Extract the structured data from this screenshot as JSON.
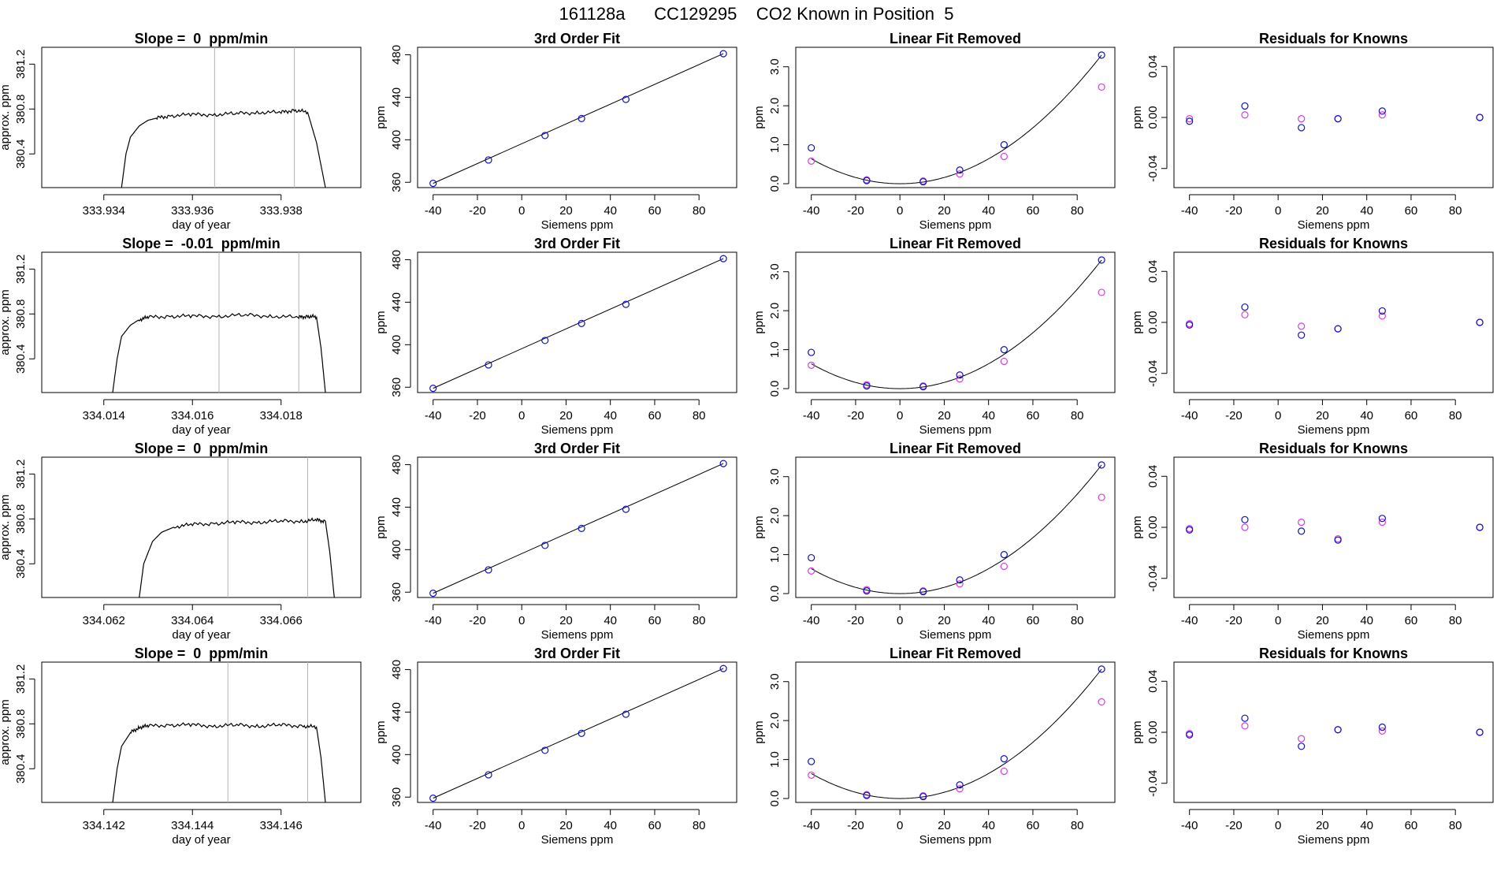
{
  "title": "161128a      CC129295    CO2 Known in Position  5",
  "colors": {
    "axis": "#000000",
    "curve": "#000000",
    "vline": "#b3b3b3",
    "point_blue": "#1010c8",
    "point_magenta": "#d040e0",
    "point_lightblue": "#3fa0e8"
  },
  "chart_data": [
    {
      "type": "line",
      "row": 1,
      "col": 1,
      "title": "Slope =  0  ppm/min",
      "xlabel": "day of year",
      "ylabel": "approx. ppm",
      "xlim": [
        333.9326,
        333.9398
      ],
      "ylim": [
        380.1,
        381.35
      ],
      "xticks": [
        333.934,
        333.936,
        333.938
      ],
      "xtick_labels": [
        "333.934",
        "333.936",
        "333.938"
      ],
      "yticks": [
        380.4,
        380.8,
        381.2
      ],
      "ytick_labels": [
        "380.4",
        "380.8",
        "381.2"
      ],
      "vlines": [
        333.9365,
        333.9383
      ],
      "x": [
        333.9344,
        333.9345,
        333.9346,
        333.9348,
        333.935,
        333.9352,
        333.9355,
        333.936,
        333.9365,
        333.937,
        333.9375,
        333.938,
        333.9383,
        333.9386,
        333.9388,
        333.939
      ],
      "y": [
        380.1,
        380.4,
        380.55,
        380.65,
        380.7,
        380.72,
        380.74,
        380.75,
        380.75,
        380.76,
        380.77,
        380.77,
        380.79,
        380.77,
        380.5,
        380.1
      ]
    },
    {
      "type": "scatter",
      "row": 1,
      "col": 2,
      "title": "3rd Order Fit",
      "xlabel": "Siemens ppm",
      "ylabel": "ppm",
      "xlim": [
        -47,
        97
      ],
      "ylim": [
        355,
        487
      ],
      "xticks": [
        -40,
        -20,
        0,
        20,
        40,
        60,
        80
      ],
      "xtick_labels": [
        "-40",
        "-20",
        "0",
        "20",
        "40",
        "60",
        "80"
      ],
      "yticks": [
        360,
        400,
        440,
        480
      ],
      "ytick_labels": [
        "360",
        "400",
        "440",
        "480"
      ],
      "fit": "linear",
      "series": [
        {
          "x": [
            -40,
            -15,
            10.5,
            27,
            47,
            91
          ],
          "y": [
            359,
            381,
            404,
            420,
            438,
            481
          ]
        }
      ]
    },
    {
      "type": "scatter",
      "row": 1,
      "col": 3,
      "title": "Linear Fit Removed",
      "xlabel": "Siemens ppm",
      "ylabel": "ppm",
      "xlim": [
        -47,
        97
      ],
      "ylim": [
        -0.1,
        3.5
      ],
      "xticks": [
        -40,
        -20,
        0,
        20,
        40,
        60,
        80
      ],
      "xtick_labels": [
        "-40",
        "-20",
        "0",
        "20",
        "40",
        "60",
        "80"
      ],
      "yticks": [
        0.0,
        1.0,
        2.0,
        3.0
      ],
      "ytick_labels": [
        "0.0",
        "1.0",
        "2.0",
        "3.0"
      ],
      "fit": "quadratic",
      "series": [
        {
          "x": [
            -40,
            -15,
            10.5,
            27,
            47,
            91
          ],
          "y": [
            0.92,
            0.08,
            0.05,
            0.35,
            1.0,
            3.3
          ]
        },
        {
          "x": [
            -40,
            -15,
            10.5,
            27,
            47,
            91
          ],
          "y": [
            0.58,
            0.1,
            0.07,
            0.25,
            0.7,
            2.48
          ]
        }
      ]
    },
    {
      "type": "scatter",
      "row": 1,
      "col": 4,
      "title": "Residuals for Knowns",
      "xlabel": "Siemens ppm",
      "ylabel": "ppm",
      "xlim": [
        -47,
        97
      ],
      "ylim": [
        -0.055,
        0.055
      ],
      "xticks": [
        -40,
        -20,
        0,
        20,
        40,
        60,
        80
      ],
      "xtick_labels": [
        "-40",
        "-20",
        "0",
        "20",
        "40",
        "60",
        "80"
      ],
      "yticks": [
        -0.04,
        0.0,
        0.04
      ],
      "ytick_labels": [
        "-0.04",
        "0.00",
        "0.04"
      ],
      "series": [
        {
          "x": [
            -40,
            -15,
            10.5,
            27,
            47,
            91
          ],
          "y": [
            -0.003,
            0.009,
            -0.008,
            -0.001,
            0.005,
            0.0
          ]
        },
        {
          "x": [
            -40,
            -15,
            10.5,
            27,
            47,
            91
          ],
          "y": [
            -0.001,
            0.002,
            -0.001,
            -0.001,
            0.002,
            0.0
          ]
        }
      ]
    },
    {
      "type": "line",
      "row": 2,
      "col": 1,
      "title": "Slope =  -0.01  ppm/min",
      "xlabel": "day of year",
      "ylabel": "approx. ppm",
      "xlim": [
        334.0126,
        334.0198
      ],
      "ylim": [
        380.1,
        381.35
      ],
      "xticks": [
        334.014,
        334.016,
        334.018
      ],
      "xtick_labels": [
        "334.014",
        "334.016",
        "334.018"
      ],
      "yticks": [
        380.4,
        380.8,
        381.2
      ],
      "ytick_labels": [
        "380.4",
        "380.8",
        "381.2"
      ],
      "vlines": [
        334.0166,
        334.0184
      ],
      "x": [
        334.0142,
        334.0143,
        334.0144,
        334.0146,
        334.0148,
        334.015,
        334.0155,
        334.016,
        334.0166,
        334.0172,
        334.0178,
        334.0184,
        334.0186,
        334.0188,
        334.0189,
        334.019
      ],
      "y": [
        380.1,
        380.4,
        380.6,
        380.7,
        380.75,
        380.77,
        380.78,
        380.78,
        380.78,
        380.79,
        380.78,
        380.77,
        380.78,
        380.77,
        380.5,
        380.1
      ]
    },
    {
      "type": "scatter",
      "row": 2,
      "col": 2,
      "title": "3rd Order Fit",
      "xlabel": "Siemens ppm",
      "ylabel": "ppm",
      "xlim": [
        -47,
        97
      ],
      "ylim": [
        355,
        487
      ],
      "xticks": [
        -40,
        -20,
        0,
        20,
        40,
        60,
        80
      ],
      "xtick_labels": [
        "-40",
        "-20",
        "0",
        "20",
        "40",
        "60",
        "80"
      ],
      "yticks": [
        360,
        400,
        440,
        480
      ],
      "ytick_labels": [
        "360",
        "400",
        "440",
        "480"
      ],
      "fit": "linear",
      "series": [
        {
          "x": [
            -40,
            -15,
            10.5,
            27,
            47,
            91
          ],
          "y": [
            359,
            381,
            404,
            420,
            438,
            481
          ]
        }
      ]
    },
    {
      "type": "scatter",
      "row": 2,
      "col": 3,
      "title": "Linear Fit Removed",
      "xlabel": "Siemens ppm",
      "ylabel": "ppm",
      "xlim": [
        -47,
        97
      ],
      "ylim": [
        -0.1,
        3.5
      ],
      "xticks": [
        -40,
        -20,
        0,
        20,
        40,
        60,
        80
      ],
      "xtick_labels": [
        "-40",
        "-20",
        "0",
        "20",
        "40",
        "60",
        "80"
      ],
      "yticks": [
        0.0,
        1.0,
        2.0,
        3.0
      ],
      "ytick_labels": [
        "0.0",
        "1.0",
        "2.0",
        "3.0"
      ],
      "fit": "quadratic",
      "series": [
        {
          "x": [
            -40,
            -15,
            10.5,
            27,
            47,
            91
          ],
          "y": [
            0.93,
            0.07,
            0.05,
            0.35,
            1.0,
            3.3
          ]
        },
        {
          "x": [
            -40,
            -15,
            10.5,
            27,
            47,
            91
          ],
          "y": [
            0.6,
            0.1,
            0.07,
            0.25,
            0.7,
            2.47
          ]
        }
      ]
    },
    {
      "type": "scatter",
      "row": 2,
      "col": 4,
      "title": "Residuals for Knowns",
      "xlabel": "Siemens ppm",
      "ylabel": "ppm",
      "xlim": [
        -47,
        97
      ],
      "ylim": [
        -0.055,
        0.055
      ],
      "xticks": [
        -40,
        -20,
        0,
        20,
        40,
        60,
        80
      ],
      "xtick_labels": [
        "-40",
        "-20",
        "0",
        "20",
        "40",
        "60",
        "80"
      ],
      "yticks": [
        -0.04,
        0.0,
        0.04
      ],
      "ytick_labels": [
        "-0.04",
        "0.00",
        "0.04"
      ],
      "series": [
        {
          "x": [
            -40,
            -15,
            10.5,
            27,
            47,
            91
          ],
          "y": [
            -0.002,
            0.012,
            -0.01,
            -0.005,
            0.009,
            0.0
          ]
        },
        {
          "x": [
            -40,
            -15,
            10.5,
            27,
            47,
            91
          ],
          "y": [
            -0.001,
            0.006,
            -0.003,
            -0.005,
            0.005,
            0.0
          ]
        }
      ]
    },
    {
      "type": "line",
      "row": 3,
      "col": 1,
      "title": "Slope =  0  ppm/min",
      "xlabel": "day of year",
      "ylabel": "approx. ppm",
      "xlim": [
        334.0606,
        334.0678
      ],
      "ylim": [
        380.1,
        381.35
      ],
      "xticks": [
        334.062,
        334.064,
        334.066
      ],
      "xtick_labels": [
        "334.062",
        "334.064",
        "334.066"
      ],
      "yticks": [
        380.4,
        380.8,
        381.2
      ],
      "ytick_labels": [
        "380.4",
        "380.8",
        "381.2"
      ],
      "vlines": [
        334.0648,
        334.0666
      ],
      "x": [
        334.0628,
        334.0629,
        334.0631,
        334.0633,
        334.0636,
        334.064,
        334.0645,
        334.065,
        334.0655,
        334.066,
        334.0665,
        334.0668,
        334.067,
        334.0671,
        334.0672
      ],
      "y": [
        380.1,
        380.4,
        380.6,
        380.68,
        380.73,
        380.75,
        380.76,
        380.77,
        380.77,
        380.78,
        380.78,
        380.79,
        380.78,
        380.5,
        380.1
      ]
    },
    {
      "type": "scatter",
      "row": 3,
      "col": 2,
      "title": "3rd Order Fit",
      "xlabel": "Siemens ppm",
      "ylabel": "ppm",
      "xlim": [
        -47,
        97
      ],
      "ylim": [
        355,
        487
      ],
      "xticks": [
        -40,
        -20,
        0,
        20,
        40,
        60,
        80
      ],
      "xtick_labels": [
        "-40",
        "-20",
        "0",
        "20",
        "40",
        "60",
        "80"
      ],
      "yticks": [
        360,
        400,
        440,
        480
      ],
      "ytick_labels": [
        "360",
        "400",
        "440",
        "480"
      ],
      "fit": "linear",
      "series": [
        {
          "x": [
            -40,
            -15,
            10.5,
            27,
            47,
            91
          ],
          "y": [
            359,
            381,
            404,
            420,
            438,
            481
          ]
        }
      ]
    },
    {
      "type": "scatter",
      "row": 3,
      "col": 3,
      "title": "Linear Fit Removed",
      "xlabel": "Siemens ppm",
      "ylabel": "ppm",
      "xlim": [
        -47,
        97
      ],
      "ylim": [
        -0.1,
        3.5
      ],
      "xticks": [
        -40,
        -20,
        0,
        20,
        40,
        60,
        80
      ],
      "xtick_labels": [
        "-40",
        "-20",
        "0",
        "20",
        "40",
        "60",
        "80"
      ],
      "yticks": [
        0.0,
        1.0,
        2.0,
        3.0
      ],
      "ytick_labels": [
        "0.0",
        "1.0",
        "2.0",
        "3.0"
      ],
      "fit": "quadratic",
      "series": [
        {
          "x": [
            -40,
            -15,
            10.5,
            27,
            47,
            91
          ],
          "y": [
            0.92,
            0.07,
            0.05,
            0.35,
            1.0,
            3.3
          ]
        },
        {
          "x": [
            -40,
            -15,
            10.5,
            27,
            47,
            91
          ],
          "y": [
            0.58,
            0.1,
            0.07,
            0.25,
            0.7,
            2.47
          ]
        }
      ]
    },
    {
      "type": "scatter",
      "row": 3,
      "col": 4,
      "title": "Residuals for Knowns",
      "xlabel": "Siemens ppm",
      "ylabel": "ppm",
      "xlim": [
        -47,
        97
      ],
      "ylim": [
        -0.055,
        0.055
      ],
      "xticks": [
        -40,
        -20,
        0,
        20,
        40,
        60,
        80
      ],
      "xtick_labels": [
        "-40",
        "-20",
        "0",
        "20",
        "40",
        "60",
        "80"
      ],
      "yticks": [
        -0.04,
        0.0,
        0.04
      ],
      "ytick_labels": [
        "-0.04",
        "0.00",
        "0.04"
      ],
      "series": [
        {
          "x": [
            -40,
            -15,
            10.5,
            27,
            47,
            91
          ],
          "y": [
            -0.002,
            0.006,
            -0.003,
            -0.01,
            0.007,
            0.0
          ]
        },
        {
          "x": [
            -40,
            -15,
            10.5,
            27,
            47,
            91
          ],
          "y": [
            -0.001,
            0.0,
            0.004,
            -0.009,
            0.004,
            0.0
          ]
        }
      ]
    },
    {
      "type": "line",
      "row": 4,
      "col": 1,
      "title": "Slope =  0  ppm/min",
      "xlabel": "day of year",
      "ylabel": "approx. ppm",
      "xlim": [
        334.1406,
        334.1478
      ],
      "ylim": [
        380.1,
        381.35
      ],
      "xticks": [
        334.142,
        334.144,
        334.146
      ],
      "xtick_labels": [
        "334.142",
        "334.144",
        "334.146"
      ],
      "yticks": [
        380.4,
        380.8,
        381.2
      ],
      "ytick_labels": [
        "380.4",
        "380.8",
        "381.2"
      ],
      "vlines": [
        334.1448,
        334.1466
      ],
      "x": [
        334.1422,
        334.1423,
        334.1424,
        334.1426,
        334.1428,
        334.143,
        334.1435,
        334.144,
        334.1445,
        334.145,
        334.1455,
        334.146,
        334.1465,
        334.1468,
        334.1469,
        334.147
      ],
      "y": [
        380.1,
        380.4,
        380.6,
        380.72,
        380.77,
        380.78,
        380.79,
        380.79,
        380.78,
        380.79,
        380.78,
        380.79,
        380.78,
        380.77,
        380.5,
        380.1
      ]
    },
    {
      "type": "scatter",
      "row": 4,
      "col": 2,
      "title": "3rd Order Fit",
      "xlabel": "Siemens ppm",
      "ylabel": "ppm",
      "xlim": [
        -47,
        97
      ],
      "ylim": [
        355,
        487
      ],
      "xticks": [
        -40,
        -20,
        0,
        20,
        40,
        60,
        80
      ],
      "xtick_labels": [
        "-40",
        "-20",
        "0",
        "20",
        "40",
        "60",
        "80"
      ],
      "yticks": [
        360,
        400,
        440,
        480
      ],
      "ytick_labels": [
        "360",
        "400",
        "440",
        "480"
      ],
      "fit": "linear",
      "series": [
        {
          "x": [
            -40,
            -15,
            10.5,
            27,
            47,
            91
          ],
          "y": [
            359,
            381,
            404,
            420,
            438,
            481
          ]
        }
      ]
    },
    {
      "type": "scatter",
      "row": 4,
      "col": 3,
      "title": "Linear Fit Removed",
      "xlabel": "Siemens ppm",
      "ylabel": "ppm",
      "xlim": [
        -47,
        97
      ],
      "ylim": [
        -0.1,
        3.5
      ],
      "xticks": [
        -40,
        -20,
        0,
        20,
        40,
        60,
        80
      ],
      "xtick_labels": [
        "-40",
        "-20",
        "0",
        "20",
        "40",
        "60",
        "80"
      ],
      "yticks": [
        0.0,
        1.0,
        2.0,
        3.0
      ],
      "ytick_labels": [
        "0.0",
        "1.0",
        "2.0",
        "3.0"
      ],
      "fit": "quadratic",
      "series": [
        {
          "x": [
            -40,
            -15,
            10.5,
            27,
            47,
            91
          ],
          "y": [
            0.95,
            0.08,
            0.05,
            0.35,
            1.02,
            3.32
          ]
        },
        {
          "x": [
            -40,
            -15,
            10.5,
            27,
            47,
            91
          ],
          "y": [
            0.6,
            0.1,
            0.07,
            0.25,
            0.7,
            2.48
          ]
        }
      ]
    },
    {
      "type": "scatter",
      "row": 4,
      "col": 4,
      "title": "Residuals for Knowns",
      "xlabel": "Siemens ppm",
      "ylabel": "ppm",
      "xlim": [
        -47,
        97
      ],
      "ylim": [
        -0.055,
        0.055
      ],
      "xticks": [
        -40,
        -20,
        0,
        20,
        40,
        60,
        80
      ],
      "xtick_labels": [
        "-40",
        "-20",
        "0",
        "20",
        "40",
        "60",
        "80"
      ],
      "yticks": [
        -0.04,
        0.0,
        0.04
      ],
      "ytick_labels": [
        "-0.04",
        "0.00",
        "0.04"
      ],
      "series": [
        {
          "x": [
            -40,
            -15,
            10.5,
            27,
            47,
            91
          ],
          "y": [
            -0.002,
            0.011,
            -0.011,
            0.002,
            0.004,
            0.0
          ]
        },
        {
          "x": [
            -40,
            -15,
            10.5,
            27,
            47,
            91
          ],
          "y": [
            -0.001,
            0.005,
            -0.005,
            0.002,
            0.001,
            0.0
          ]
        }
      ]
    }
  ]
}
